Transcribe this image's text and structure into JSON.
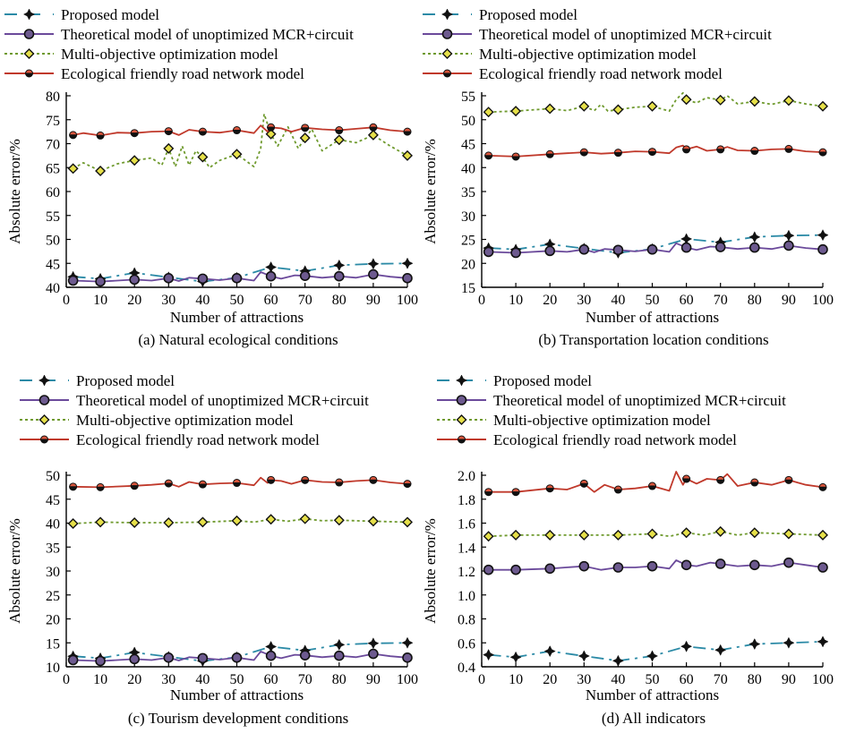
{
  "colors": {
    "proposed": "#2b8aa6",
    "theoretical": "#6b4a9b",
    "multi": "#6f9a2e",
    "ecological": "#c0392b",
    "marker_yellow": "#e6e04a"
  },
  "legend_labels": [
    "Proposed model",
    "Theoretical model of unoptimized MCR+circuit",
    "Multi-objective optimization model",
    "Ecological friendly road network model"
  ],
  "chart_data": [
    {
      "type": "line",
      "caption": "(a) Natural ecological conditions",
      "xlabel": "Number of attractions",
      "ylabel": "Absolute error/%",
      "xlim": [
        0,
        100
      ],
      "ylim": [
        40,
        80
      ],
      "xticks": [
        0,
        10,
        20,
        30,
        40,
        50,
        60,
        70,
        80,
        90,
        100
      ],
      "yticks": [
        40,
        45,
        50,
        55,
        60,
        65,
        70,
        75,
        80
      ],
      "grid": false,
      "legend_position": "top",
      "series": [
        {
          "name": "Proposed model",
          "x": [
            2,
            10,
            20,
            30,
            40,
            50,
            60,
            70,
            80,
            90,
            100
          ],
          "y": [
            42.2,
            41.8,
            43.0,
            42.1,
            41.2,
            42.0,
            44.2,
            43.4,
            44.6,
            44.9,
            45.0
          ]
        },
        {
          "name": "Theoretical model of unoptimized MCR+circuit",
          "x": [
            2,
            10,
            20,
            25,
            30,
            33,
            36,
            40,
            45,
            50,
            55,
            57,
            60,
            63,
            67,
            70,
            75,
            80,
            85,
            90,
            95,
            100
          ],
          "y": [
            41.4,
            41.2,
            41.6,
            41.4,
            41.9,
            41.3,
            42.0,
            41.8,
            41.5,
            41.9,
            41.4,
            43.2,
            42.3,
            41.8,
            42.5,
            42.4,
            42.0,
            42.3,
            42.0,
            42.7,
            42.2,
            41.9
          ]
        },
        {
          "name": "Multi-objective optimization model",
          "x": [
            2,
            5,
            10,
            15,
            20,
            25,
            28,
            30,
            32,
            34,
            36,
            38,
            40,
            42,
            45,
            50,
            55,
            57,
            58,
            60,
            62,
            65,
            68,
            70,
            72,
            75,
            80,
            85,
            90,
            95,
            100
          ],
          "y": [
            64.8,
            66.0,
            64.3,
            65.8,
            66.5,
            67.0,
            65.5,
            69.0,
            65.2,
            69.5,
            65.5,
            68.5,
            67.2,
            65.0,
            66.5,
            67.8,
            65.2,
            69.0,
            76.2,
            72.0,
            69.5,
            73.5,
            69.0,
            71.2,
            73.0,
            68.5,
            70.8,
            70.2,
            71.8,
            69.5,
            67.5
          ]
        },
        {
          "name": "Ecological friendly road network model",
          "x": [
            2,
            5,
            10,
            15,
            20,
            25,
            30,
            33,
            36,
            40,
            45,
            50,
            55,
            57,
            59,
            60,
            63,
            66,
            70,
            75,
            80,
            85,
            90,
            95,
            100
          ],
          "y": [
            71.8,
            72.2,
            71.7,
            72.3,
            72.2,
            72.5,
            72.6,
            71.8,
            72.9,
            72.5,
            72.3,
            72.8,
            72.2,
            73.8,
            72.5,
            73.4,
            73.2,
            72.5,
            73.3,
            73.0,
            72.8,
            73.1,
            73.4,
            72.8,
            72.5
          ]
        }
      ]
    },
    {
      "type": "line",
      "caption": "(b) Transportation location conditions",
      "xlabel": "Number of attractions",
      "ylabel": "Absolute error/%",
      "xlim": [
        0,
        100
      ],
      "ylim": [
        15,
        55
      ],
      "xticks": [
        0,
        10,
        20,
        30,
        40,
        50,
        60,
        70,
        80,
        90,
        100
      ],
      "yticks": [
        15,
        20,
        25,
        30,
        35,
        40,
        45,
        50,
        55
      ],
      "grid": false,
      "legend_position": "top",
      "series": [
        {
          "name": "Proposed model",
          "x": [
            2,
            10,
            20,
            30,
            40,
            50,
            60,
            70,
            80,
            90,
            100
          ],
          "y": [
            23.2,
            22.9,
            24.0,
            23.1,
            22.2,
            23.0,
            25.1,
            24.4,
            25.5,
            25.8,
            25.9
          ]
        },
        {
          "name": "Theoretical model of unoptimized MCR+circuit",
          "x": [
            2,
            10,
            20,
            25,
            30,
            33,
            36,
            40,
            45,
            50,
            55,
            57,
            60,
            63,
            67,
            70,
            75,
            80,
            85,
            90,
            95,
            100
          ],
          "y": [
            22.4,
            22.2,
            22.6,
            22.4,
            22.9,
            22.3,
            23.0,
            22.8,
            22.5,
            22.9,
            22.4,
            24.2,
            23.3,
            22.8,
            23.5,
            23.4,
            23.0,
            23.3,
            23.0,
            23.7,
            23.2,
            22.9
          ]
        },
        {
          "name": "Multi-objective optimization model",
          "x": [
            2,
            10,
            20,
            25,
            30,
            33,
            35,
            37,
            40,
            45,
            50,
            55,
            57,
            59,
            60,
            63,
            66,
            70,
            72,
            75,
            80,
            85,
            90,
            95,
            100
          ],
          "y": [
            51.6,
            51.8,
            52.3,
            51.9,
            52.8,
            51.9,
            53.2,
            51.8,
            52.1,
            52.6,
            52.8,
            51.8,
            54.2,
            55.6,
            54.2,
            53.5,
            54.6,
            54.1,
            55.0,
            53.3,
            53.8,
            53.2,
            54.0,
            53.3,
            52.8
          ]
        },
        {
          "name": "Ecological friendly road network model",
          "x": [
            2,
            10,
            20,
            25,
            30,
            35,
            40,
            45,
            50,
            55,
            57,
            59,
            60,
            63,
            66,
            70,
            72,
            75,
            80,
            85,
            90,
            95,
            100
          ],
          "y": [
            42.5,
            42.3,
            42.8,
            43.0,
            43.2,
            42.9,
            43.1,
            43.4,
            43.3,
            43.0,
            44.2,
            44.6,
            43.8,
            44.4,
            43.5,
            43.8,
            44.3,
            43.6,
            43.5,
            43.8,
            43.9,
            43.4,
            43.2
          ]
        }
      ]
    },
    {
      "type": "line",
      "caption": "(c) Tourism development conditions",
      "xlabel": "Number of attractions",
      "ylabel": "Absolute error/%",
      "xlim": [
        0,
        100
      ],
      "ylim": [
        10,
        50
      ],
      "xticks": [
        0,
        10,
        20,
        30,
        40,
        50,
        60,
        70,
        80,
        90,
        100
      ],
      "yticks": [
        10,
        15,
        20,
        25,
        30,
        35,
        40,
        45,
        50
      ],
      "grid": false,
      "legend_position": "top",
      "series": [
        {
          "name": "Proposed model",
          "x": [
            2,
            10,
            20,
            30,
            40,
            50,
            60,
            70,
            80,
            90,
            100
          ],
          "y": [
            12.2,
            11.8,
            13.0,
            12.1,
            11.2,
            12.0,
            14.2,
            13.4,
            14.6,
            14.9,
            15.0
          ]
        },
        {
          "name": "Theoretical model of unoptimized MCR+circuit",
          "x": [
            2,
            10,
            20,
            25,
            30,
            33,
            36,
            40,
            45,
            50,
            55,
            57,
            60,
            63,
            67,
            70,
            75,
            80,
            85,
            90,
            95,
            100
          ],
          "y": [
            11.4,
            11.2,
            11.6,
            11.4,
            11.9,
            11.3,
            12.0,
            11.8,
            11.5,
            11.9,
            11.4,
            13.2,
            12.3,
            11.8,
            12.5,
            12.4,
            12.0,
            12.3,
            12.0,
            12.7,
            12.2,
            11.9
          ]
        },
        {
          "name": "Multi-objective optimization model",
          "x": [
            2,
            10,
            20,
            30,
            40,
            50,
            55,
            60,
            65,
            70,
            75,
            80,
            90,
            100
          ],
          "y": [
            39.9,
            40.2,
            40.1,
            40.1,
            40.2,
            40.5,
            40.2,
            40.8,
            40.4,
            40.9,
            40.5,
            40.6,
            40.4,
            40.2
          ]
        },
        {
          "name": "Ecological friendly road network model",
          "x": [
            2,
            10,
            20,
            25,
            30,
            33,
            36,
            40,
            45,
            50,
            55,
            57,
            59,
            60,
            63,
            66,
            70,
            75,
            80,
            85,
            90,
            95,
            100
          ],
          "y": [
            47.6,
            47.5,
            47.8,
            48.0,
            48.3,
            47.6,
            48.6,
            48.1,
            48.3,
            48.4,
            47.9,
            49.5,
            48.4,
            49.0,
            48.8,
            48.2,
            49.0,
            48.6,
            48.5,
            48.8,
            49.0,
            48.5,
            48.2
          ]
        }
      ]
    },
    {
      "type": "line",
      "caption": "(d) All indicators",
      "xlabel": "Number of attractions",
      "ylabel": "Absolute error/%",
      "xlim": [
        0,
        100
      ],
      "ylim": [
        0.4,
        2.0
      ],
      "xticks": [
        0,
        10,
        20,
        30,
        40,
        50,
        60,
        70,
        80,
        90,
        100
      ],
      "yticks": [
        "0.4",
        "0.6",
        "0.8",
        "1.0",
        "1.2",
        "1.4",
        "1.6",
        "1.8",
        "2.0"
      ],
      "grid": false,
      "legend_position": "top",
      "series": [
        {
          "name": "Proposed model",
          "x": [
            2,
            10,
            20,
            30,
            40,
            50,
            60,
            70,
            80,
            90,
            100
          ],
          "y": [
            0.5,
            0.48,
            0.53,
            0.49,
            0.45,
            0.49,
            0.57,
            0.54,
            0.59,
            0.6,
            0.61
          ]
        },
        {
          "name": "Theoretical model of unoptimized MCR+circuit",
          "x": [
            2,
            10,
            20,
            30,
            35,
            40,
            45,
            50,
            55,
            57,
            60,
            63,
            67,
            70,
            75,
            80,
            85,
            90,
            95,
            100
          ],
          "y": [
            1.21,
            1.21,
            1.22,
            1.24,
            1.21,
            1.23,
            1.23,
            1.24,
            1.22,
            1.29,
            1.25,
            1.24,
            1.27,
            1.26,
            1.24,
            1.25,
            1.24,
            1.27,
            1.25,
            1.23
          ]
        },
        {
          "name": "Multi-objective optimization model",
          "x": [
            2,
            10,
            20,
            30,
            40,
            50,
            55,
            60,
            65,
            70,
            75,
            80,
            90,
            100
          ],
          "y": [
            1.49,
            1.5,
            1.5,
            1.5,
            1.5,
            1.51,
            1.49,
            1.52,
            1.5,
            1.53,
            1.5,
            1.52,
            1.51,
            1.5
          ]
        },
        {
          "name": "Ecological friendly road network model",
          "x": [
            2,
            10,
            20,
            25,
            30,
            33,
            36,
            40,
            45,
            50,
            55,
            57,
            59,
            60,
            63,
            66,
            70,
            72,
            75,
            80,
            85,
            90,
            95,
            100
          ],
          "y": [
            1.86,
            1.86,
            1.89,
            1.88,
            1.93,
            1.86,
            1.92,
            1.88,
            1.89,
            1.91,
            1.87,
            2.03,
            1.92,
            1.97,
            1.93,
            1.97,
            1.96,
            2.01,
            1.91,
            1.94,
            1.92,
            1.96,
            1.92,
            1.9
          ]
        }
      ]
    }
  ]
}
